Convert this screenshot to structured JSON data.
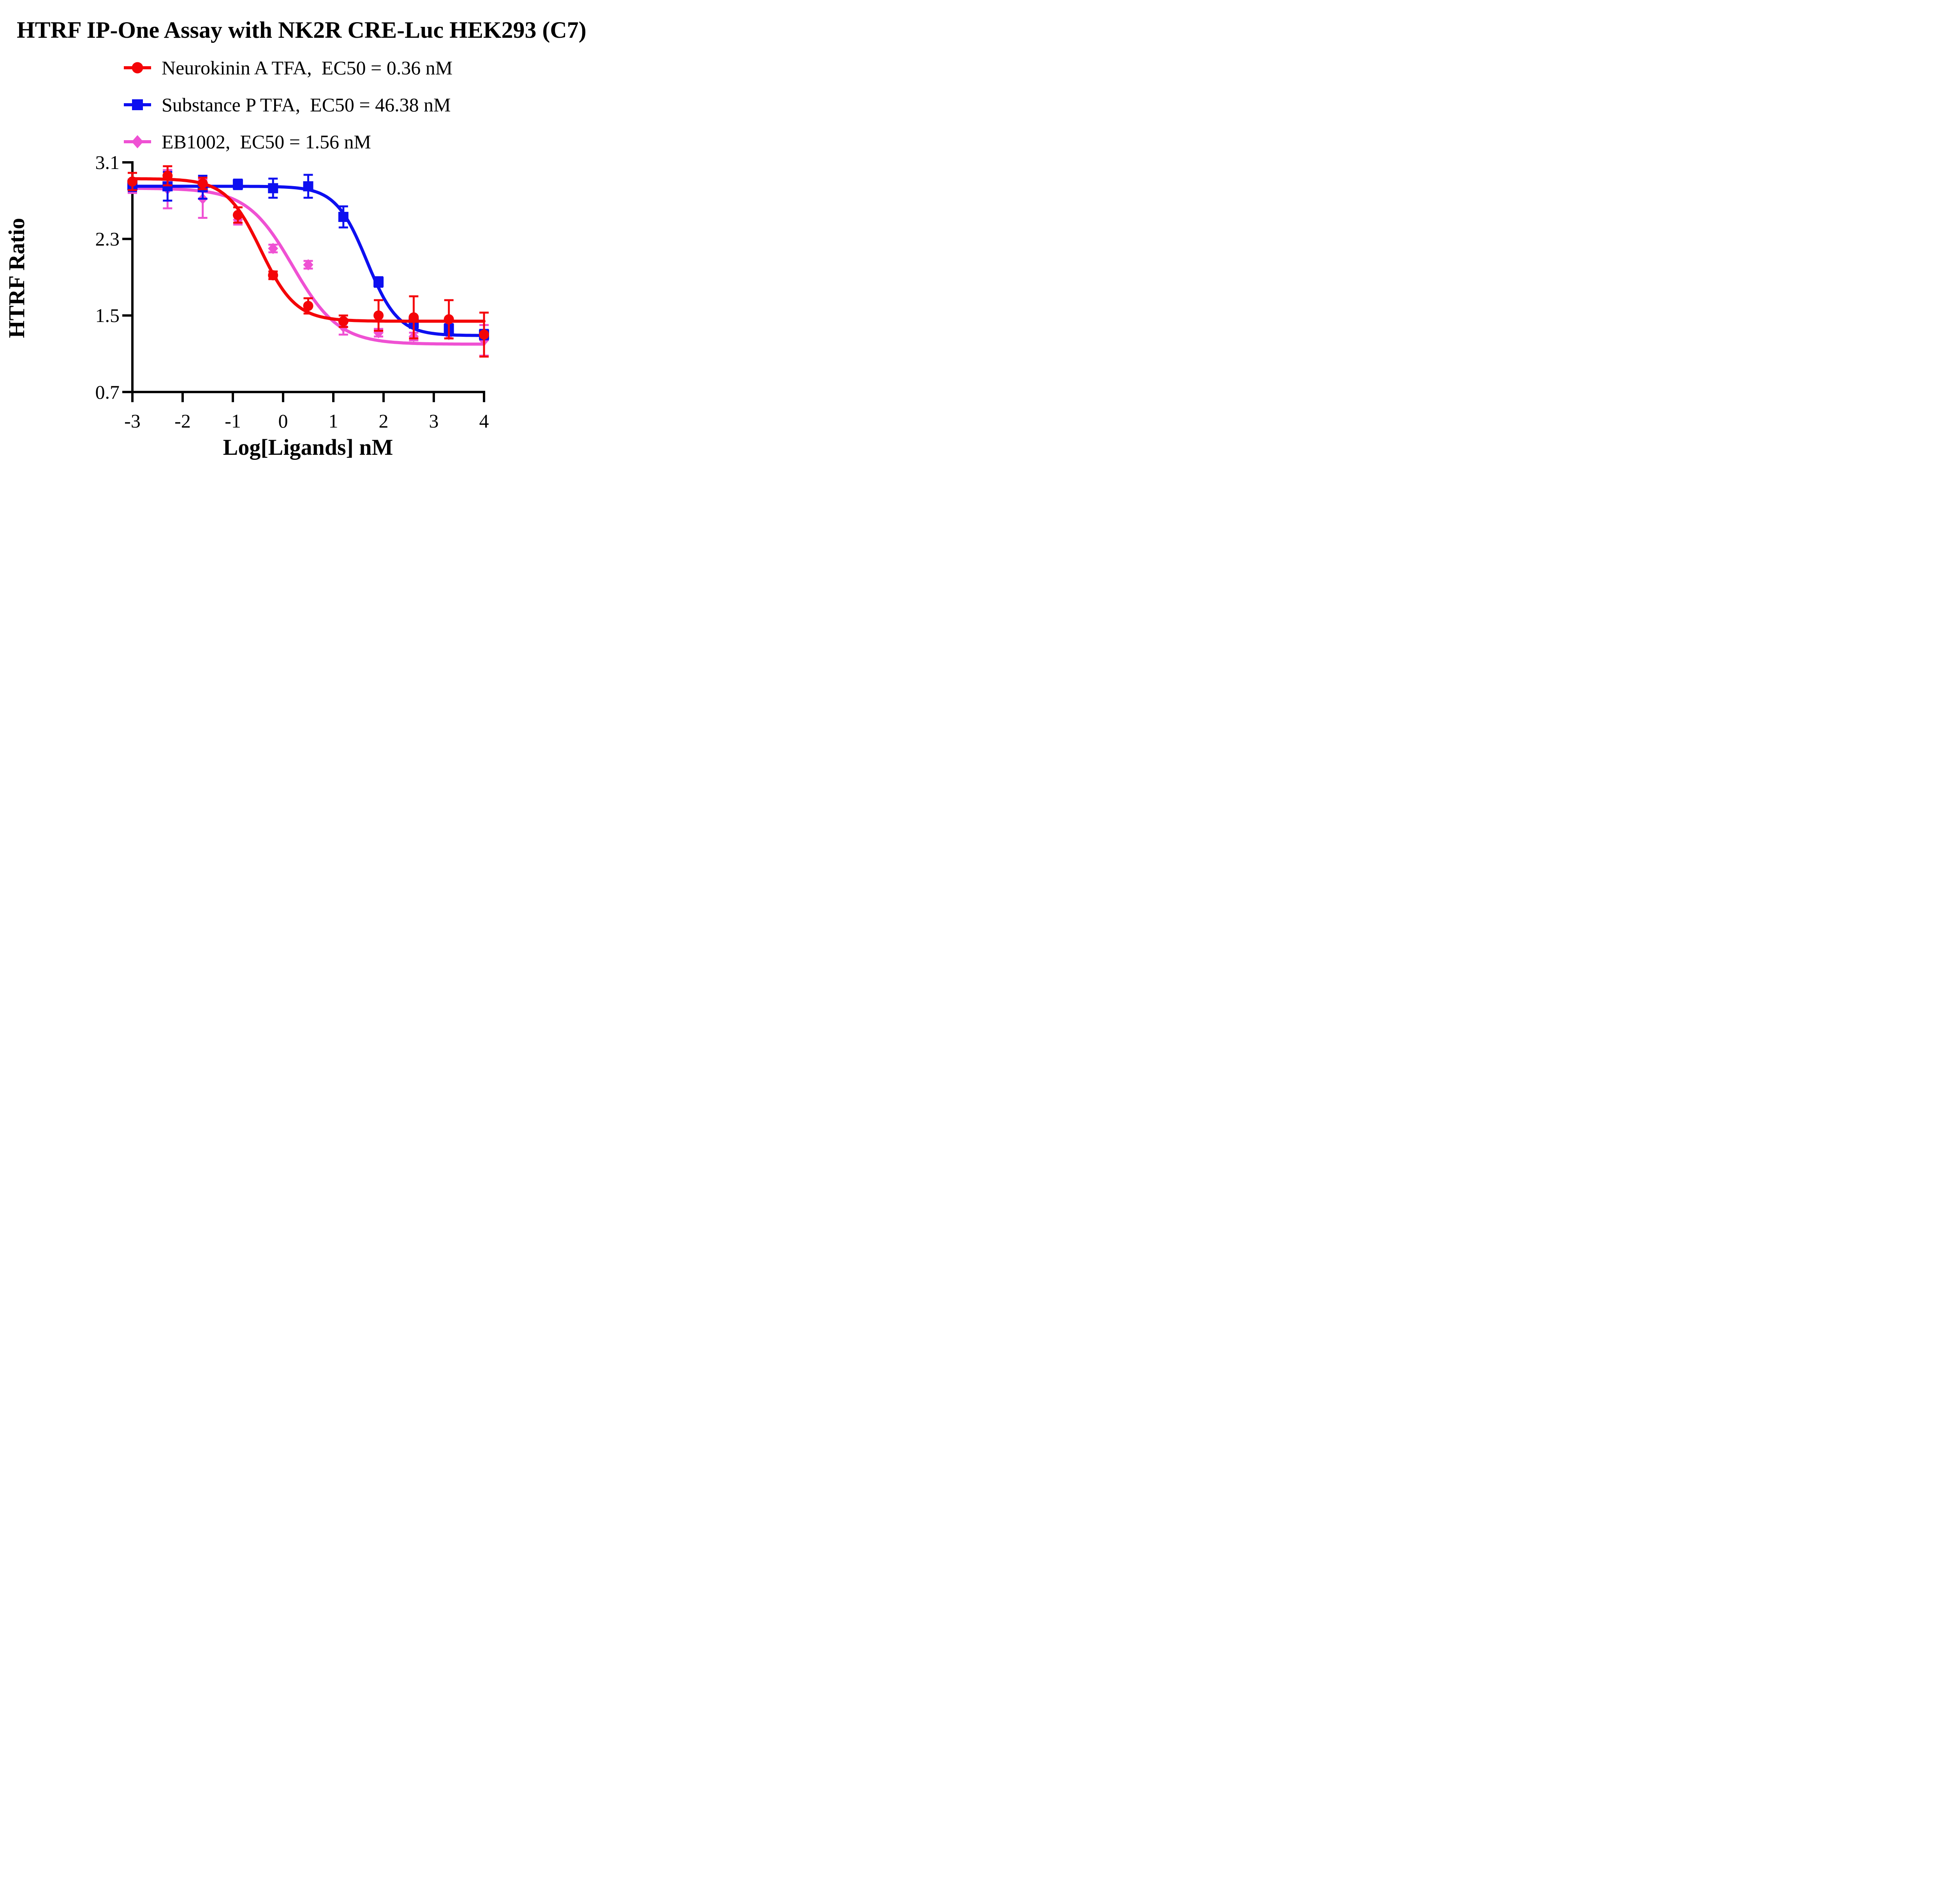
{
  "title": "HTRF IP-One Assay with NK2R CRE-Luc HEK293 (C7)",
  "axis_color": "#000000",
  "background_color": "#FFFFFF",
  "chart_data": {
    "type": "line",
    "title": "HTRF IP-One Assay with NK2R CRE-Luc HEK293 (C7)",
    "xlabel": "Log[Ligands] nM",
    "ylabel": "HTRF Ratio",
    "xlim": [
      -3,
      4
    ],
    "ylim": [
      0.7,
      3.1
    ],
    "x_ticks": [
      -3,
      -2,
      -1,
      0,
      1,
      2,
      3,
      4
    ],
    "y_ticks": [
      3.1,
      2.3,
      1.5,
      0.7
    ],
    "grid": false,
    "legend_position": "top-left",
    "x": [
      -3.0,
      -2.3,
      -1.6,
      -0.9,
      -0.2,
      0.5,
      1.2,
      1.9,
      2.6,
      3.3,
      4.0
    ],
    "series": [
      {
        "name": "Neurokinin A TFA",
        "legend_label": "Neurokinin A TFA,  EC50 = 0.36 nM",
        "ec50_nM": 0.36,
        "color": "#F40408",
        "marker": "circle",
        "values": [
          2.9,
          2.96,
          2.88,
          2.55,
          1.92,
          1.6,
          1.44,
          1.5,
          1.48,
          1.46,
          1.3
        ],
        "errors": [
          0.09,
          0.1,
          0.06,
          0.08,
          0.04,
          0.08,
          0.06,
          0.16,
          0.22,
          0.2,
          0.23
        ],
        "fit": {
          "top": 2.93,
          "bottom": 1.44,
          "logEC50": -0.4437,
          "hill": 1.25
        }
      },
      {
        "name": "Substance P TFA",
        "legend_label": "Substance P TFA,  EC50 = 46.38 nM",
        "ec50_nM": 46.38,
        "color": "#0D0FF0",
        "marker": "square",
        "values": [
          2.86,
          2.85,
          2.84,
          2.87,
          2.83,
          2.85,
          2.53,
          1.85,
          1.42,
          1.36,
          1.3
        ],
        "errors": [
          0.06,
          0.15,
          0.12,
          0.05,
          0.1,
          0.12,
          0.11,
          0.05,
          0.05,
          0.05,
          0.05
        ],
        "fit": {
          "top": 2.85,
          "bottom": 1.29,
          "logEC50": 1.6663,
          "hill": 1.4
        }
      },
      {
        "name": "EB1002",
        "legend_label": "EB1002,  EC50 = 1.56 nM",
        "ec50_nM": 1.56,
        "color": "#EF51D3",
        "marker": "diamond",
        "values": [
          2.84,
          2.82,
          2.72,
          2.5,
          2.2,
          2.03,
          1.38,
          1.32,
          1.28,
          1.3,
          1.24
        ],
        "errors": [
          0.06,
          0.2,
          0.2,
          0.05,
          0.04,
          0.04,
          0.08,
          0.04,
          0.04,
          0.04,
          0.16
        ],
        "fit": {
          "top": 2.83,
          "bottom": 1.2,
          "logEC50": 0.1931,
          "hill": 0.95
        }
      }
    ],
    "draw_order": [
      2,
      1,
      0
    ]
  }
}
